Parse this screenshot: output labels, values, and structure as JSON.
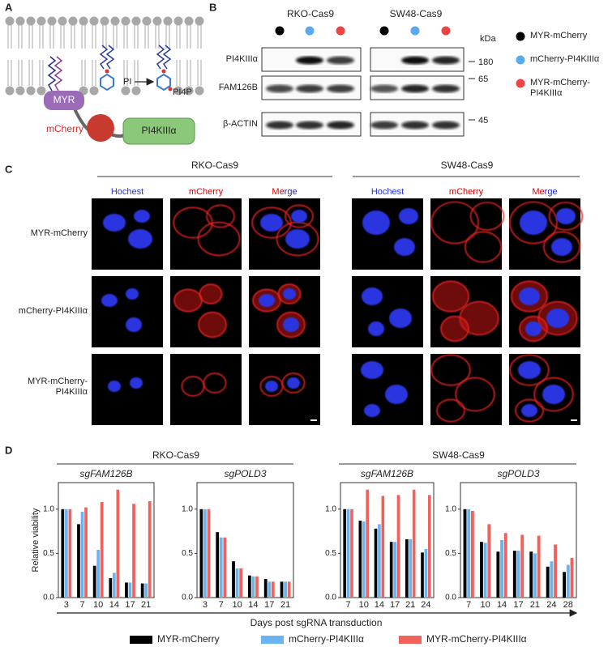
{
  "panel_labels": [
    "A",
    "B",
    "C",
    "D"
  ],
  "panel_a": {
    "myr": "MYR",
    "mcherry": "mCherry",
    "pi4k": "PI4KIIIα",
    "pi": "PI",
    "pi4p": "PI4P"
  },
  "panel_b": {
    "cell_lines": [
      "RKO-Cas9",
      "SW48-Cas9"
    ],
    "blots": [
      "PI4KIIIα",
      "FAM126B",
      "β-ACTIN"
    ],
    "kda": "kDa",
    "markers": [
      "180",
      "65",
      "45"
    ],
    "legend": [
      {
        "label": "MYR-mCherry",
        "color": "#000000"
      },
      {
        "label": "mCherry-PI4KIIIα",
        "color": "#5aa8ee"
      },
      {
        "label": "MYR-mCherry-PI4KIIIα",
        "color": "#ee4444"
      }
    ]
  },
  "panel_c": {
    "cell_lines": [
      "RKO-Cas9",
      "SW48-Cas9"
    ],
    "channels": [
      "Hochest",
      "mCherry",
      "Merge"
    ],
    "rows": [
      "MYR-mCherry",
      "mCherry-PI4KIIIα",
      "MYR-mCherry-PI4KIIIα"
    ]
  },
  "panel_d": {
    "cell_lines": [
      "RKO-Cas9",
      "SW48-Cas9"
    ],
    "y_label": "Relative viability",
    "x_label": "Days post sgRNA transduction"
  },
  "chart_data": [
    {
      "type": "bar",
      "title": "sgFAM126B",
      "categories": [
        "3",
        "7",
        "10",
        "14",
        "17",
        "21"
      ],
      "ylim": [
        0,
        1.3
      ],
      "yticks": [
        {
          "value": 0,
          "label": "0.0"
        },
        {
          "value": 0.5,
          "label": "0.5"
        },
        {
          "value": 1,
          "label": "1.0"
        }
      ],
      "series": [
        {
          "name": "MYR-mCherry",
          "color": "#000000",
          "values": [
            1.0,
            0.83,
            0.36,
            0.22,
            0.17,
            0.16
          ]
        },
        {
          "name": "mCherry-PI4KIIIα",
          "color": "#6ab4f2",
          "values": [
            1.0,
            0.97,
            0.54,
            0.28,
            0.17,
            0.16
          ]
        },
        {
          "name": "MYR-mCherry-PI4KIIIα",
          "color": "#f2625c",
          "values": [
            1.0,
            1.02,
            1.08,
            1.22,
            1.06,
            1.09
          ]
        }
      ]
    },
    {
      "type": "bar",
      "title": "sgPOLD3",
      "categories": [
        "3",
        "7",
        "10",
        "14",
        "17",
        "21"
      ],
      "ylim": [
        0,
        1.3
      ],
      "yticks": [
        {
          "value": 0,
          "label": "0.0"
        },
        {
          "value": 0.5,
          "label": "0.5"
        },
        {
          "value": 1,
          "label": "1.0"
        }
      ],
      "series": [
        {
          "name": "MYR-mCherry",
          "color": "#000000",
          "values": [
            1.0,
            0.74,
            0.41,
            0.25,
            0.21,
            0.18
          ]
        },
        {
          "name": "mCherry-PI4KIIIα",
          "color": "#6ab4f2",
          "values": [
            1.0,
            0.68,
            0.33,
            0.24,
            0.18,
            0.18
          ]
        },
        {
          "name": "MYR-mCherry-PI4KIIIα",
          "color": "#f2625c",
          "values": [
            1.0,
            0.68,
            0.33,
            0.24,
            0.18,
            0.18
          ]
        }
      ]
    },
    {
      "type": "bar",
      "title": "sgFAM126B",
      "categories": [
        "7",
        "10",
        "14",
        "17",
        "21",
        "24"
      ],
      "ylim": [
        0,
        1.3
      ],
      "yticks": [
        {
          "value": 0,
          "label": "0.0"
        },
        {
          "value": 0.5,
          "label": "0.5"
        },
        {
          "value": 1,
          "label": "1.0"
        }
      ],
      "series": [
        {
          "name": "MYR-mCherry",
          "color": "#000000",
          "values": [
            1.0,
            0.87,
            0.78,
            0.63,
            0.66,
            0.51
          ]
        },
        {
          "name": "mCherry-PI4KIIIα",
          "color": "#6ab4f2",
          "values": [
            1.0,
            0.86,
            0.83,
            0.63,
            0.66,
            0.55
          ]
        },
        {
          "name": "MYR-mCherry-PI4KIIIα",
          "color": "#f2625c",
          "values": [
            1.0,
            1.22,
            1.15,
            1.16,
            1.22,
            1.16
          ]
        }
      ]
    },
    {
      "type": "bar",
      "title": "sgPOLD3",
      "categories": [
        "7",
        "10",
        "14",
        "17",
        "21",
        "24",
        "28"
      ],
      "ylim": [
        0,
        1.3
      ],
      "yticks": [
        {
          "value": 0,
          "label": "0.0"
        },
        {
          "value": 0.5,
          "label": "0.5"
        },
        {
          "value": 1,
          "label": "1.0"
        }
      ],
      "series": [
        {
          "name": "MYR-mCherry",
          "color": "#000000",
          "values": [
            1.0,
            0.63,
            0.52,
            0.53,
            0.52,
            0.35,
            0.29
          ]
        },
        {
          "name": "mCherry-PI4KIIIα",
          "color": "#6ab4f2",
          "values": [
            1.0,
            0.62,
            0.65,
            0.53,
            0.5,
            0.41,
            0.37
          ]
        },
        {
          "name": "MYR-mCherry-PI4KIIIα",
          "color": "#f2625c",
          "values": [
            0.98,
            0.83,
            0.73,
            0.71,
            0.7,
            0.6,
            0.45
          ]
        }
      ]
    }
  ]
}
